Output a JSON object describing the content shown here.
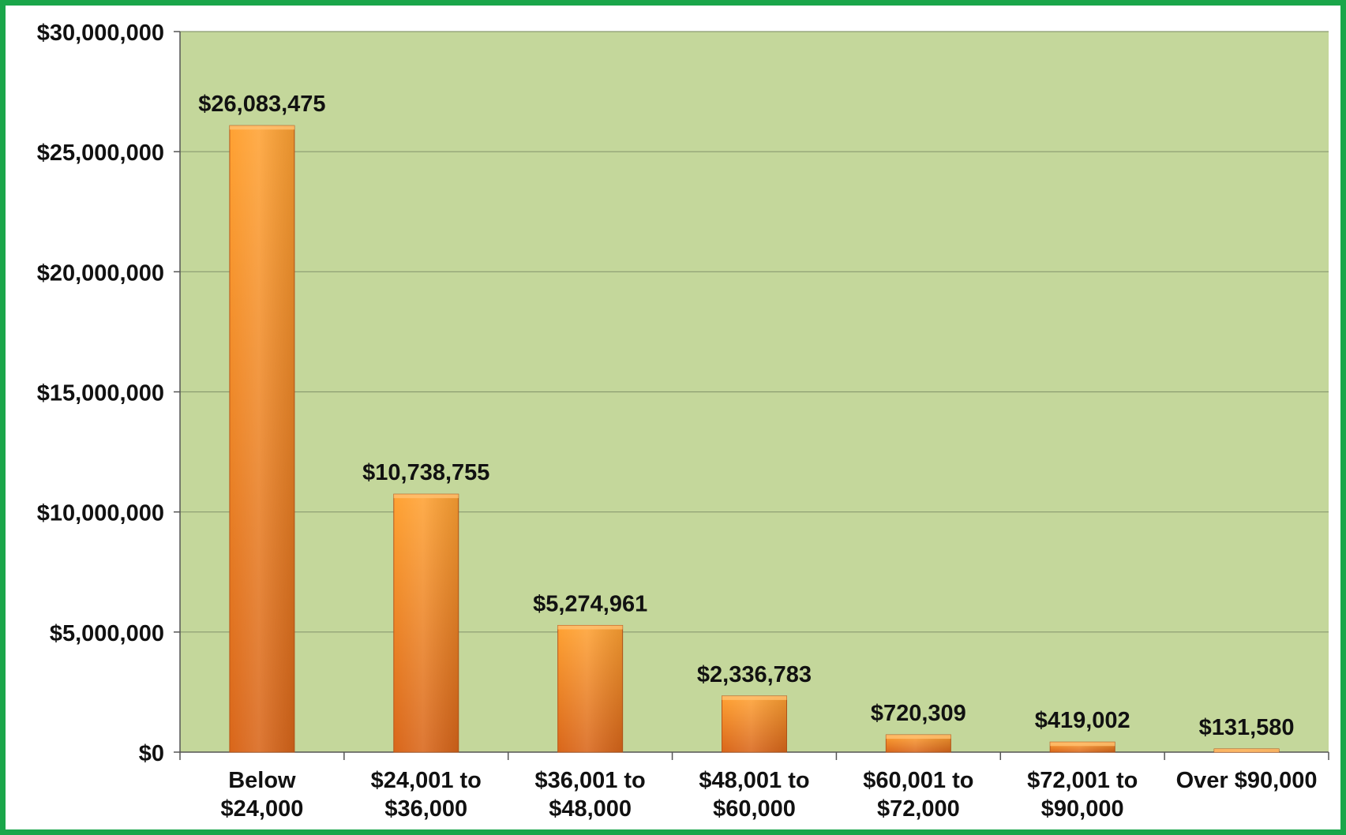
{
  "chart_data": {
    "type": "bar",
    "categories": [
      [
        "Below",
        "$24,000"
      ],
      [
        "$24,001 to",
        "$36,000"
      ],
      [
        "$36,001 to",
        "$48,000"
      ],
      [
        "$48,001 to",
        "$60,000"
      ],
      [
        "$60,001 to",
        "$72,000"
      ],
      [
        "$72,001 to",
        "$90,000"
      ],
      [
        "Over $90,000"
      ]
    ],
    "values": [
      26083475,
      10738755,
      5274961,
      2336783,
      720309,
      419002,
      131580
    ],
    "value_labels": [
      "$26,083,475",
      "$10,738,755",
      "$5,274,961",
      "$2,336,783",
      "$720,309",
      "$419,002",
      "$131,580"
    ],
    "y_ticks": [
      0,
      5000000,
      10000000,
      15000000,
      20000000,
      25000000,
      30000000
    ],
    "y_tick_labels": [
      "$0",
      "$5,000,000",
      "$10,000,000",
      "$15,000,000",
      "$20,000,000",
      "$25,000,000",
      "$30,000,000"
    ],
    "ylim": [
      0,
      30000000
    ],
    "grid": true,
    "colors": {
      "plot_background": "#c4d79b",
      "bar_light": "#ffa233",
      "bar_dark": "#d9661a",
      "border": "#1aa64a",
      "gridline": "#8a9a70"
    }
  }
}
